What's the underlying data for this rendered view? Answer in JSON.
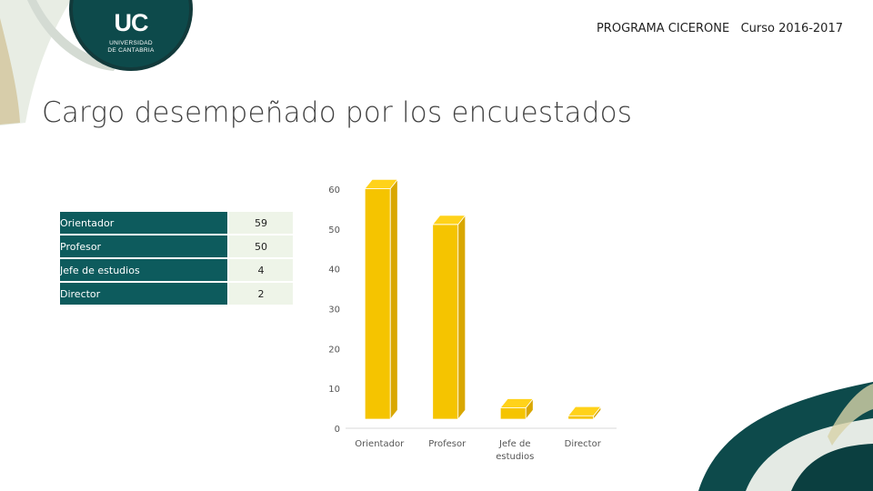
{
  "header": {
    "program": "PROGRAMA CICERONE",
    "course": "Curso 2016-2017"
  },
  "logo": {
    "mark": "UC",
    "line1": "UNIVERSIDAD",
    "line2": "DE CANTABRIA"
  },
  "slide": {
    "title": "Cargo desempeñado por los encuestados"
  },
  "table": {
    "rows": [
      {
        "label": "Orientador",
        "value": "59"
      },
      {
        "label": "Profesor",
        "value": "50"
      },
      {
        "label": "Jefe de estudios",
        "value": "4"
      },
      {
        "label": "Director",
        "value": "2"
      }
    ]
  },
  "colors": {
    "teal": "#0d5b5d",
    "bar_front": "#f5c400",
    "bar_top": "#ffd21a",
    "bar_side": "#d9a700"
  },
  "chart_data": {
    "type": "bar",
    "categories": [
      "Orientador",
      "Profesor",
      "Jefe de estudios",
      "Director"
    ],
    "category_lines": [
      [
        "Orientador"
      ],
      [
        "Profesor"
      ],
      [
        "Jefe de",
        "estudios"
      ],
      [
        "Director"
      ]
    ],
    "values": [
      59,
      50,
      4,
      2
    ],
    "title": "",
    "xlabel": "",
    "ylabel": "",
    "ylim": [
      0,
      60
    ],
    "yticks": [
      0,
      10,
      20,
      30,
      40,
      50,
      60
    ],
    "grid": false,
    "legend": "none",
    "style": "3d"
  }
}
